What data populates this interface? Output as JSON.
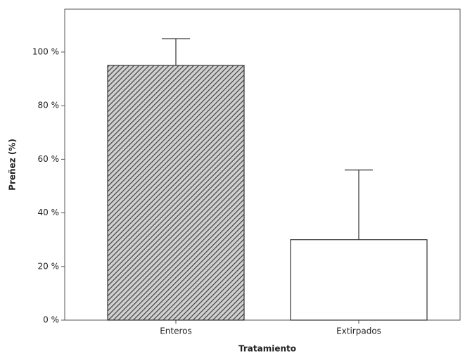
{
  "chart_data": {
    "type": "bar",
    "x_label": "Tratamiento",
    "y_label": "Preñez (%)",
    "categories": [
      "Enteros",
      "Extirpados"
    ],
    "values": [
      95,
      30
    ],
    "errors": [
      10,
      26
    ],
    "colors": [
      "#8a8a8a",
      "#ffffff"
    ],
    "hatched": [
      true,
      false
    ],
    "ylim": [
      0,
      116
    ],
    "yticks": [
      {
        "value": 0,
        "label": "0 %"
      },
      {
        "value": 20,
        "label": "20 %"
      },
      {
        "value": 40,
        "label": "40 %"
      },
      {
        "value": 60,
        "label": "60 %"
      },
      {
        "value": 80,
        "label": "80 %"
      },
      {
        "value": 100,
        "label": "100 %"
      }
    ],
    "grid": false
  }
}
